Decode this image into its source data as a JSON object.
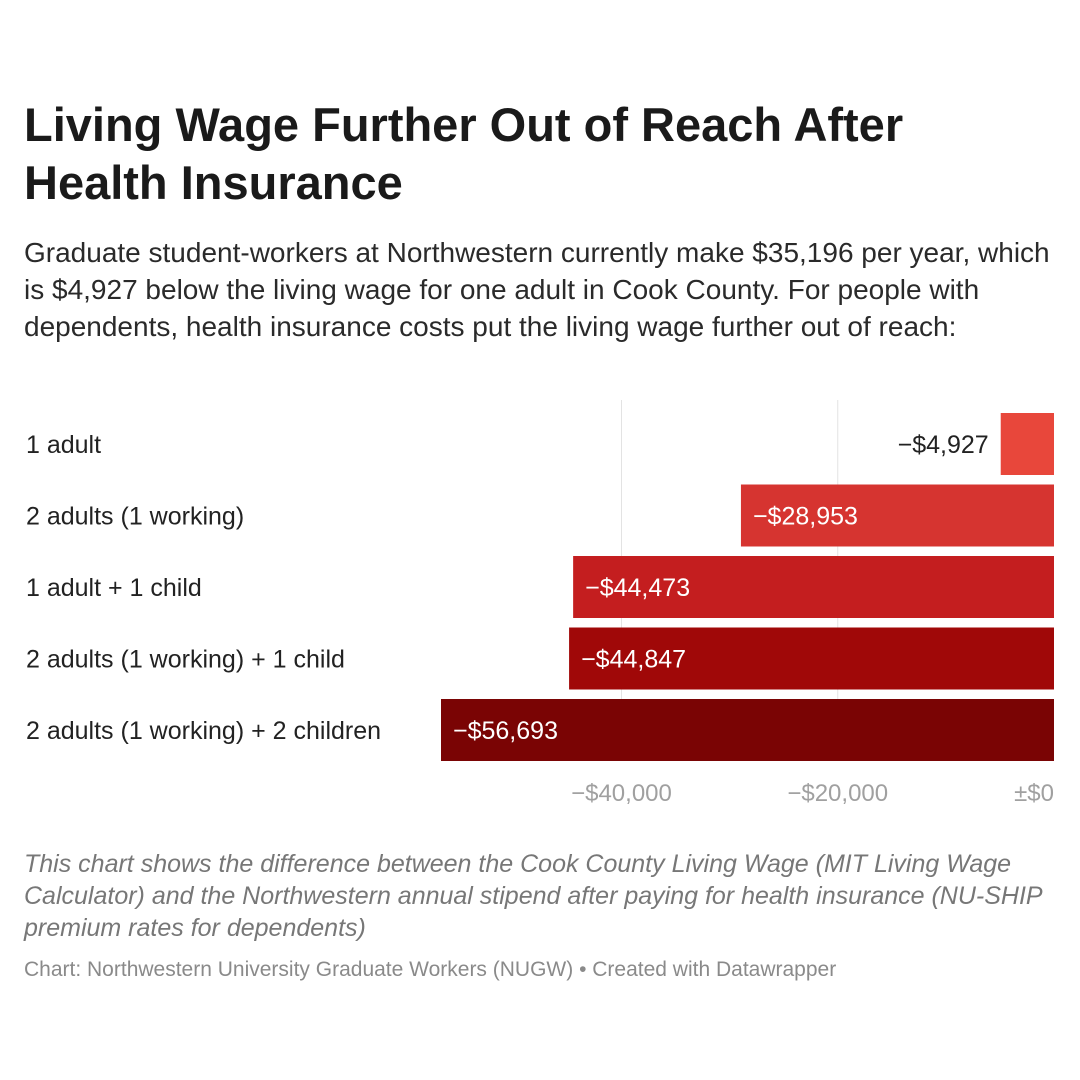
{
  "chart_data": {
    "type": "bar",
    "orientation": "horizontal",
    "title": "Living Wage Further Out of Reach After Health Insurance",
    "subtitle": "Graduate student-workers at Northwestern currently make $35,196 per year, which is $4,927 below the living wage for one adult in Cook County. For people with dependents, health insurance costs put the living wage further out of reach:",
    "categories": [
      "1 adult",
      "2 adults (1 working)",
      "1 adult + 1 child",
      "2 adults (1 working) + 1 child",
      "2 adults (1 working) + 2 children"
    ],
    "values": [
      -4927,
      -28953,
      -44473,
      -44847,
      -56693
    ],
    "value_labels": [
      "−$4,927",
      "−$28,953",
      "−$44,473",
      "−$44,847",
      "−$56,693"
    ],
    "colors": [
      "#e8473b",
      "#d63430",
      "#c41e1f",
      "#a00808",
      "#7a0404"
    ],
    "xlim": [
      -56693,
      0
    ],
    "xticks": [
      -40000,
      -20000,
      0
    ],
    "xtick_labels": [
      "−$40,000",
      "−$20,000",
      "±$0"
    ],
    "grid": true,
    "legend": "none"
  },
  "notes": "This chart shows the difference between the Cook County Living Wage (MIT Living Wage Calculator) and the Northwestern annual stipend after paying for health insurance (NU-SHIP premium rates for dependents)",
  "credit": "Chart: Northwestern University Graduate Workers (NUGW) • Created with Datawrapper"
}
